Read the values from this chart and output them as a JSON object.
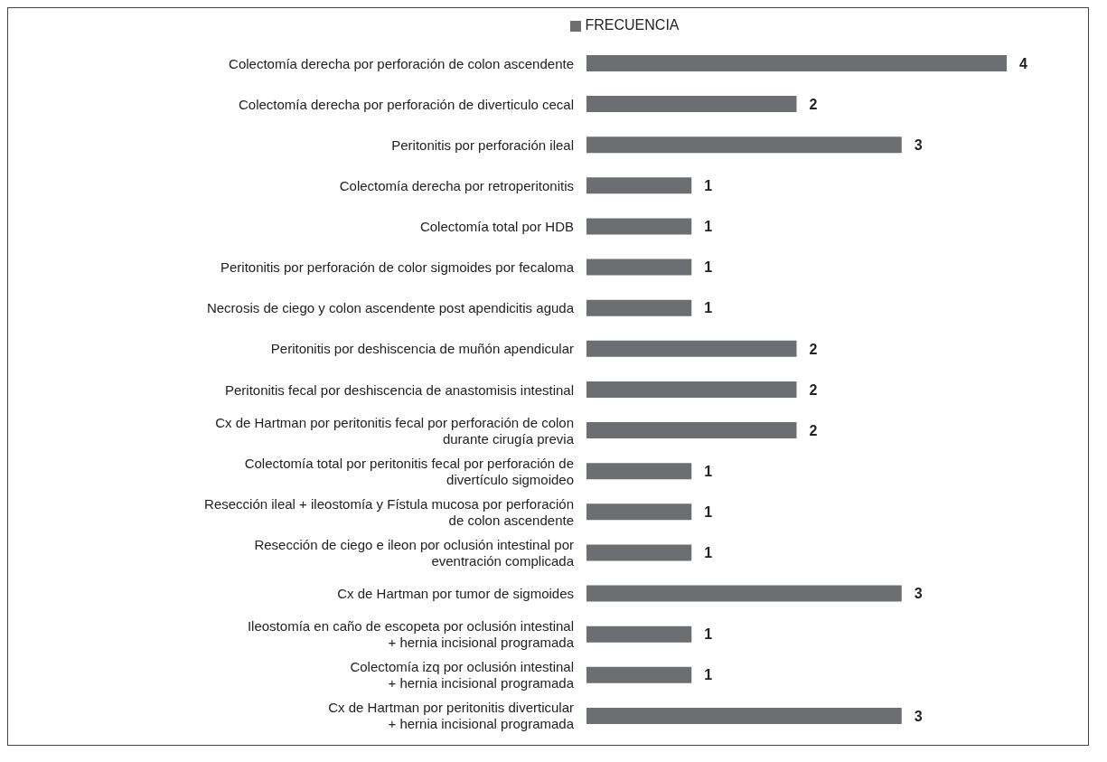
{
  "chart_data": {
    "type": "bar",
    "orientation": "horizontal",
    "data_labels": true,
    "legend": "top",
    "categories": [
      "Colectomía derecha por perforación de colon ascendente",
      "Colectomía derecha por perforación de diverticulo cecal",
      "Peritonitis por perforación ileal",
      "Colectomía derecha por retroperitonitis",
      "Colectomía total por HDB",
      "Peritonitis por perforación de color sigmoides por fecaloma",
      "Necrosis de ciego y colon ascendente post apendicitis aguda",
      "Peritonitis por deshiscencia de muñón apendicular",
      "Peritonitis fecal por deshiscencia de anastomisis intestinal",
      "Cx de Hartman por peritonitis fecal por perforación de colon\ndurante cirugía previa",
      "Colectomía total por peritonitis fecal por perforación de\ndivertículo sigmoideo",
      "Resección ileal + ileostomía y Fístula mucosa por perforación\nde colon ascendente",
      "Resección de ciego e ileon por oclusión intestinal por\neventración complicada",
      "Cx de Hartman por tumor de sigmoides",
      "Ileostomía en caño de escopeta por oclusión intestinal\n+ hernia incisional programada",
      "Colectomía izq por oclusión intestinal\n+ hernia incisional programada",
      "Cx de Hartman por peritonitis diverticular\n+ hernia incisional programada"
    ],
    "series": [
      {
        "name": "FRECUENCIA",
        "color": "#6d6e71",
        "values": [
          4,
          2,
          3,
          1,
          1,
          1,
          1,
          2,
          2,
          2,
          1,
          1,
          1,
          3,
          1,
          1,
          3
        ]
      }
    ]
  }
}
